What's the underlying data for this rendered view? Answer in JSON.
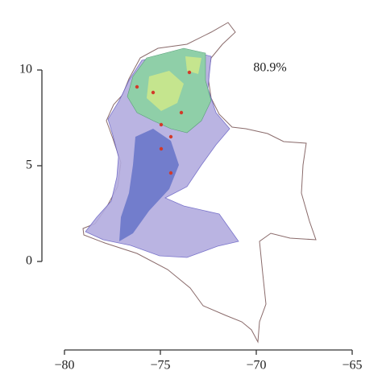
{
  "chart_data": {
    "type": "map",
    "annotation": "80.9%",
    "xlim": [
      -80,
      -65
    ],
    "xticks": [
      {
        "value": -80,
        "label": "−80"
      },
      {
        "value": -75,
        "label": "−75"
      },
      {
        "value": -70,
        "label": "−70"
      },
      {
        "value": -65,
        "label": "−65"
      }
    ],
    "ylim": [
      0,
      10
    ],
    "yticks": [
      0,
      5,
      10
    ]
  }
}
